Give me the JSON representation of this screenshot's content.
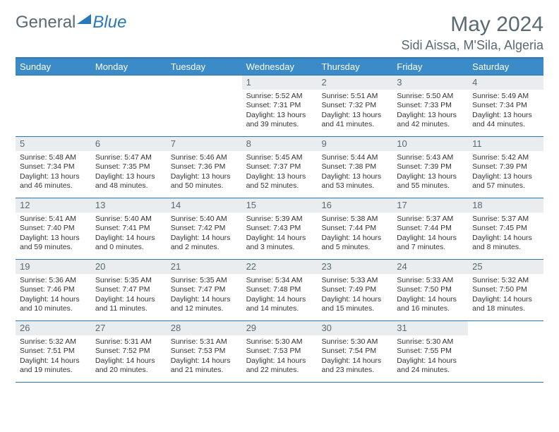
{
  "brand": {
    "general": "General",
    "blue": "Blue"
  },
  "title": {
    "month": "May 2024",
    "location": "Sidi Aissa, M'Sila, Algeria"
  },
  "style": {
    "accent": "#3b8bc9",
    "border": "#2a78b8",
    "daynum_bg": "#e9edef",
    "text_muted": "#5a6a72",
    "text": "#333333",
    "bg": "#ffffff",
    "header_fontsize": 30,
    "location_fontsize": 18,
    "dayhead_fontsize": 13,
    "cell_fontsize": 10.5
  },
  "day_headers": [
    "Sunday",
    "Monday",
    "Tuesday",
    "Wednesday",
    "Thursday",
    "Friday",
    "Saturday"
  ],
  "weeks": [
    [
      null,
      null,
      null,
      {
        "n": "1",
        "sr": "Sunrise: 5:52 AM",
        "ss": "Sunset: 7:31 PM",
        "d1": "Daylight: 13 hours",
        "d2": "and 39 minutes."
      },
      {
        "n": "2",
        "sr": "Sunrise: 5:51 AM",
        "ss": "Sunset: 7:32 PM",
        "d1": "Daylight: 13 hours",
        "d2": "and 41 minutes."
      },
      {
        "n": "3",
        "sr": "Sunrise: 5:50 AM",
        "ss": "Sunset: 7:33 PM",
        "d1": "Daylight: 13 hours",
        "d2": "and 42 minutes."
      },
      {
        "n": "4",
        "sr": "Sunrise: 5:49 AM",
        "ss": "Sunset: 7:34 PM",
        "d1": "Daylight: 13 hours",
        "d2": "and 44 minutes."
      }
    ],
    [
      {
        "n": "5",
        "sr": "Sunrise: 5:48 AM",
        "ss": "Sunset: 7:34 PM",
        "d1": "Daylight: 13 hours",
        "d2": "and 46 minutes."
      },
      {
        "n": "6",
        "sr": "Sunrise: 5:47 AM",
        "ss": "Sunset: 7:35 PM",
        "d1": "Daylight: 13 hours",
        "d2": "and 48 minutes."
      },
      {
        "n": "7",
        "sr": "Sunrise: 5:46 AM",
        "ss": "Sunset: 7:36 PM",
        "d1": "Daylight: 13 hours",
        "d2": "and 50 minutes."
      },
      {
        "n": "8",
        "sr": "Sunrise: 5:45 AM",
        "ss": "Sunset: 7:37 PM",
        "d1": "Daylight: 13 hours",
        "d2": "and 52 minutes."
      },
      {
        "n": "9",
        "sr": "Sunrise: 5:44 AM",
        "ss": "Sunset: 7:38 PM",
        "d1": "Daylight: 13 hours",
        "d2": "and 53 minutes."
      },
      {
        "n": "10",
        "sr": "Sunrise: 5:43 AM",
        "ss": "Sunset: 7:39 PM",
        "d1": "Daylight: 13 hours",
        "d2": "and 55 minutes."
      },
      {
        "n": "11",
        "sr": "Sunrise: 5:42 AM",
        "ss": "Sunset: 7:39 PM",
        "d1": "Daylight: 13 hours",
        "d2": "and 57 minutes."
      }
    ],
    [
      {
        "n": "12",
        "sr": "Sunrise: 5:41 AM",
        "ss": "Sunset: 7:40 PM",
        "d1": "Daylight: 13 hours",
        "d2": "and 59 minutes."
      },
      {
        "n": "13",
        "sr": "Sunrise: 5:40 AM",
        "ss": "Sunset: 7:41 PM",
        "d1": "Daylight: 14 hours",
        "d2": "and 0 minutes."
      },
      {
        "n": "14",
        "sr": "Sunrise: 5:40 AM",
        "ss": "Sunset: 7:42 PM",
        "d1": "Daylight: 14 hours",
        "d2": "and 2 minutes."
      },
      {
        "n": "15",
        "sr": "Sunrise: 5:39 AM",
        "ss": "Sunset: 7:43 PM",
        "d1": "Daylight: 14 hours",
        "d2": "and 3 minutes."
      },
      {
        "n": "16",
        "sr": "Sunrise: 5:38 AM",
        "ss": "Sunset: 7:44 PM",
        "d1": "Daylight: 14 hours",
        "d2": "and 5 minutes."
      },
      {
        "n": "17",
        "sr": "Sunrise: 5:37 AM",
        "ss": "Sunset: 7:44 PM",
        "d1": "Daylight: 14 hours",
        "d2": "and 7 minutes."
      },
      {
        "n": "18",
        "sr": "Sunrise: 5:37 AM",
        "ss": "Sunset: 7:45 PM",
        "d1": "Daylight: 14 hours",
        "d2": "and 8 minutes."
      }
    ],
    [
      {
        "n": "19",
        "sr": "Sunrise: 5:36 AM",
        "ss": "Sunset: 7:46 PM",
        "d1": "Daylight: 14 hours",
        "d2": "and 10 minutes."
      },
      {
        "n": "20",
        "sr": "Sunrise: 5:35 AM",
        "ss": "Sunset: 7:47 PM",
        "d1": "Daylight: 14 hours",
        "d2": "and 11 minutes."
      },
      {
        "n": "21",
        "sr": "Sunrise: 5:35 AM",
        "ss": "Sunset: 7:47 PM",
        "d1": "Daylight: 14 hours",
        "d2": "and 12 minutes."
      },
      {
        "n": "22",
        "sr": "Sunrise: 5:34 AM",
        "ss": "Sunset: 7:48 PM",
        "d1": "Daylight: 14 hours",
        "d2": "and 14 minutes."
      },
      {
        "n": "23",
        "sr": "Sunrise: 5:33 AM",
        "ss": "Sunset: 7:49 PM",
        "d1": "Daylight: 14 hours",
        "d2": "and 15 minutes."
      },
      {
        "n": "24",
        "sr": "Sunrise: 5:33 AM",
        "ss": "Sunset: 7:50 PM",
        "d1": "Daylight: 14 hours",
        "d2": "and 16 minutes."
      },
      {
        "n": "25",
        "sr": "Sunrise: 5:32 AM",
        "ss": "Sunset: 7:50 PM",
        "d1": "Daylight: 14 hours",
        "d2": "and 18 minutes."
      }
    ],
    [
      {
        "n": "26",
        "sr": "Sunrise: 5:32 AM",
        "ss": "Sunset: 7:51 PM",
        "d1": "Daylight: 14 hours",
        "d2": "and 19 minutes."
      },
      {
        "n": "27",
        "sr": "Sunrise: 5:31 AM",
        "ss": "Sunset: 7:52 PM",
        "d1": "Daylight: 14 hours",
        "d2": "and 20 minutes."
      },
      {
        "n": "28",
        "sr": "Sunrise: 5:31 AM",
        "ss": "Sunset: 7:53 PM",
        "d1": "Daylight: 14 hours",
        "d2": "and 21 minutes."
      },
      {
        "n": "29",
        "sr": "Sunrise: 5:30 AM",
        "ss": "Sunset: 7:53 PM",
        "d1": "Daylight: 14 hours",
        "d2": "and 22 minutes."
      },
      {
        "n": "30",
        "sr": "Sunrise: 5:30 AM",
        "ss": "Sunset: 7:54 PM",
        "d1": "Daylight: 14 hours",
        "d2": "and 23 minutes."
      },
      {
        "n": "31",
        "sr": "Sunrise: 5:30 AM",
        "ss": "Sunset: 7:55 PM",
        "d1": "Daylight: 14 hours",
        "d2": "and 24 minutes."
      },
      null
    ]
  ]
}
